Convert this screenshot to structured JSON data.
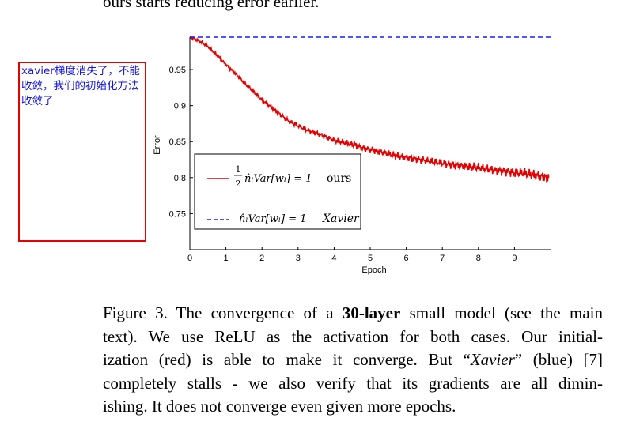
{
  "top_text": "ours starts reducing error earlier.",
  "annotation": {
    "text": "xavier梯度消失了，不能收敛，我们的初始化方法收敛了",
    "border_color": "#e60000",
    "text_color": "#1515e0"
  },
  "caption": {
    "figure_label": "Figure 3. The convergence of a ",
    "bold": "30-layer",
    "line1_rest": " small model (see the main",
    "line2": "text).  We use ReLU as the activation for both cases.  Our initial-",
    "line3_a": "ization (red) is able to make it converge.  But “",
    "xavier": "Xavier",
    "line3_b": "” (blue) [7]",
    "line4": "completely stalls - we also verify that its gradients are all dimin-",
    "line5": "ishing. It does not converge even given more epochs."
  },
  "chart_data": {
    "type": "line",
    "title": "",
    "xlabel": "Epoch",
    "ylabel": "Error",
    "xlim": [
      0,
      10
    ],
    "ylim": [
      0.7,
      0.995
    ],
    "xticks": [
      "0",
      "1",
      "2",
      "3",
      "4",
      "5",
      "6",
      "7",
      "8",
      "9"
    ],
    "yticks": [
      "0.75",
      "0.8",
      "0.85",
      "0.9",
      "0.95"
    ],
    "legend_position": "bottom-left",
    "series": [
      {
        "name": "ours",
        "legend_math": "½ n̂ₗVar[wₗ] = 1",
        "color": "#e60000",
        "style": "solid",
        "x": [
          0,
          0.25,
          0.5,
          0.75,
          1,
          1.25,
          1.5,
          1.75,
          2,
          2.25,
          2.5,
          2.75,
          3,
          3.25,
          3.5,
          3.75,
          4,
          4.25,
          4.5,
          4.75,
          5,
          5.25,
          5.5,
          5.75,
          6,
          6.25,
          6.5,
          6.75,
          7,
          7.25,
          7.5,
          7.75,
          8,
          8.25,
          8.5,
          8.75,
          9,
          9.25,
          9.5,
          9.75,
          9.95
        ],
        "y": [
          0.995,
          0.99,
          0.982,
          0.97,
          0.957,
          0.945,
          0.932,
          0.92,
          0.908,
          0.898,
          0.888,
          0.878,
          0.872,
          0.866,
          0.862,
          0.857,
          0.852,
          0.849,
          0.846,
          0.842,
          0.839,
          0.836,
          0.833,
          0.83,
          0.828,
          0.826,
          0.824,
          0.822,
          0.82,
          0.818,
          0.817,
          0.815,
          0.814,
          0.812,
          0.81,
          0.809,
          0.807,
          0.806,
          0.804,
          0.802,
          0.8
        ]
      },
      {
        "name": "Xavier",
        "legend_math": "n̂ₗVar[wₗ] = 1",
        "color": "#1a1aff",
        "style": "dashed",
        "x": [
          0,
          10
        ],
        "y": [
          0.995,
          0.995
        ]
      }
    ]
  }
}
